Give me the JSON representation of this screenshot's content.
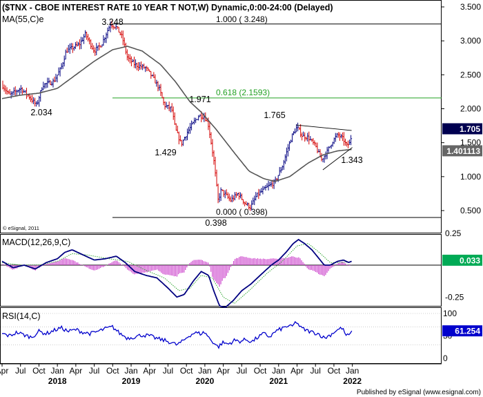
{
  "header": {
    "title": "($TNX - CBOE INTEREST RATE 10 YEAR T NOT,W) Dynamic,0:00-24:00 (Delayed)",
    "ma_label": "MA(55,C)e",
    "copyright": "© eSignal, 2011"
  },
  "footer": "Published by eSignal (www.esignal.com)",
  "colors": {
    "up": "#000080",
    "down": "#d40000",
    "ma": "#555555",
    "fib": "#22a022",
    "macd": "#000080",
    "signal": "#22a022",
    "hist": "#cc44cc",
    "rsi": "#0000cc",
    "badge_dark": "#000050",
    "badge_green": "#00aa55",
    "badge_blue": "#0000cc"
  },
  "chart_data": [
    {
      "type": "candlestick",
      "title": "($TNX - CBOE INTEREST RATE 10 YEAR T NOT,W) Dynamic,0:00-24:00 (Delayed)",
      "ylim": [
        0.2,
        3.5
      ],
      "y_ticks": [
        "3.500",
        "3.000",
        "2.500",
        "2.000",
        "1.500",
        "1.000",
        "0.500"
      ],
      "x_ticks": [
        "Apr",
        "Jul",
        "Oct",
        "Jan",
        "Apr",
        "Jul",
        "Oct",
        "Jan",
        "Apr",
        "Jul",
        "Oct",
        "Jan",
        "Apr",
        "Jul",
        "Oct",
        "Jan",
        "Apr",
        "Jul",
        "Oct",
        "Jan"
      ],
      "year_labels": [
        "2018",
        "2019",
        "2020",
        "2021",
        "2022"
      ],
      "price_badges": [
        {
          "label": "1.705",
          "value": 1.705
        },
        {
          "label": "1.401113",
          "value": 1.401
        }
      ],
      "fib_levels": [
        {
          "label": "1.000 ( 3.248)",
          "value": 3.248
        },
        {
          "label": "0.618 (2.1593)",
          "value": 2.1593
        },
        {
          "label": "0.000 ( 0.398)",
          "value": 0.398
        }
      ],
      "annotations": [
        {
          "label": "3.248",
          "value": 3.248
        },
        {
          "label": "2.034",
          "value": 2.034
        },
        {
          "label": "1.971",
          "value": 1.971
        },
        {
          "label": "1.429",
          "value": 1.429
        },
        {
          "label": "0.398",
          "value": 0.398
        },
        {
          "label": "1.765",
          "value": 1.765
        },
        {
          "label": "1.343",
          "value": 1.343
        }
      ],
      "price_anchors": [
        [
          2017.25,
          2.35
        ],
        [
          2017.35,
          2.2
        ],
        [
          2017.5,
          2.3
        ],
        [
          2017.6,
          2.2
        ],
        [
          2017.72,
          2.05
        ],
        [
          2017.8,
          2.35
        ],
        [
          2017.95,
          2.4
        ],
        [
          2018.05,
          2.6
        ],
        [
          2018.12,
          2.85
        ],
        [
          2018.3,
          2.95
        ],
        [
          2018.38,
          3.1
        ],
        [
          2018.5,
          2.85
        ],
        [
          2018.6,
          2.95
        ],
        [
          2018.72,
          3.25
        ],
        [
          2018.8,
          3.2
        ],
        [
          2018.88,
          3.05
        ],
        [
          2018.95,
          2.75
        ],
        [
          2019.05,
          2.65
        ],
        [
          2019.2,
          2.6
        ],
        [
          2019.3,
          2.45
        ],
        [
          2019.38,
          2.3
        ],
        [
          2019.45,
          2.05
        ],
        [
          2019.55,
          2.0
        ],
        [
          2019.6,
          1.7
        ],
        [
          2019.68,
          1.48
        ],
        [
          2019.76,
          1.65
        ],
        [
          2019.85,
          1.8
        ],
        [
          2019.92,
          1.9
        ],
        [
          2020.0,
          1.88
        ],
        [
          2020.05,
          1.75
        ],
        [
          2020.12,
          1.25
        ],
        [
          2020.18,
          0.65
        ],
        [
          2020.22,
          0.8
        ],
        [
          2020.35,
          0.65
        ],
        [
          2020.45,
          0.75
        ],
        [
          2020.55,
          0.6
        ],
        [
          2020.62,
          0.55
        ],
        [
          2020.7,
          0.72
        ],
        [
          2020.85,
          0.85
        ],
        [
          2020.95,
          0.92
        ],
        [
          2021.05,
          1.15
        ],
        [
          2021.12,
          1.4
        ],
        [
          2021.18,
          1.6
        ],
        [
          2021.25,
          1.73
        ],
        [
          2021.32,
          1.6
        ],
        [
          2021.4,
          1.58
        ],
        [
          2021.5,
          1.45
        ],
        [
          2021.58,
          1.25
        ],
        [
          2021.65,
          1.35
        ],
        [
          2021.72,
          1.5
        ],
        [
          2021.8,
          1.62
        ],
        [
          2021.88,
          1.55
        ],
        [
          2021.92,
          1.45
        ],
        [
          2021.97,
          1.5
        ],
        [
          2022.0,
          1.705
        ]
      ],
      "ma_anchors": [
        [
          2017.25,
          2.15
        ],
        [
          2017.5,
          2.2
        ],
        [
          2017.75,
          2.23
        ],
        [
          2018.0,
          2.3
        ],
        [
          2018.25,
          2.5
        ],
        [
          2018.5,
          2.7
        ],
        [
          2018.75,
          2.87
        ],
        [
          2018.95,
          2.92
        ],
        [
          2019.15,
          2.85
        ],
        [
          2019.4,
          2.65
        ],
        [
          2019.6,
          2.4
        ],
        [
          2019.8,
          2.1
        ],
        [
          2019.95,
          1.95
        ],
        [
          2020.15,
          1.7
        ],
        [
          2020.4,
          1.35
        ],
        [
          2020.6,
          1.08
        ],
        [
          2020.8,
          0.97
        ],
        [
          2020.95,
          0.93
        ],
        [
          2021.15,
          1.0
        ],
        [
          2021.4,
          1.2
        ],
        [
          2021.6,
          1.32
        ],
        [
          2021.8,
          1.38
        ],
        [
          2022.0,
          1.401
        ]
      ]
    },
    {
      "type": "line",
      "title": "MACD(12,26,9,C)",
      "y_ticks": [
        "0.25",
        "-0.25"
      ],
      "ylim": [
        -0.38,
        0.28
      ],
      "badge": {
        "label": "0.033",
        "value": 0.033
      },
      "macd_anchors": [
        [
          2017.25,
          0.03
        ],
        [
          2017.4,
          -0.02
        ],
        [
          2017.55,
          0.0
        ],
        [
          2017.7,
          -0.03
        ],
        [
          2017.85,
          0.02
        ],
        [
          2018.0,
          0.05
        ],
        [
          2018.1,
          0.1
        ],
        [
          2018.2,
          0.12
        ],
        [
          2018.35,
          0.08
        ],
        [
          2018.5,
          0.04
        ],
        [
          2018.65,
          0.05
        ],
        [
          2018.8,
          0.07
        ],
        [
          2018.92,
          0.02
        ],
        [
          2019.05,
          -0.05
        ],
        [
          2019.2,
          -0.08
        ],
        [
          2019.35,
          -0.1
        ],
        [
          2019.5,
          -0.18
        ],
        [
          2019.62,
          -0.25
        ],
        [
          2019.72,
          -0.23
        ],
        [
          2019.85,
          -0.12
        ],
        [
          2019.95,
          -0.05
        ],
        [
          2020.05,
          -0.08
        ],
        [
          2020.12,
          -0.2
        ],
        [
          2020.2,
          -0.32
        ],
        [
          2020.28,
          -0.33
        ],
        [
          2020.38,
          -0.28
        ],
        [
          2020.5,
          -0.2
        ],
        [
          2020.62,
          -0.15
        ],
        [
          2020.75,
          -0.08
        ],
        [
          2020.9,
          0.0
        ],
        [
          2021.0,
          0.04
        ],
        [
          2021.1,
          0.1
        ],
        [
          2021.2,
          0.17
        ],
        [
          2021.27,
          0.2
        ],
        [
          2021.35,
          0.17
        ],
        [
          2021.45,
          0.12
        ],
        [
          2021.55,
          0.05
        ],
        [
          2021.62,
          0.0
        ],
        [
          2021.7,
          0.0
        ],
        [
          2021.8,
          0.03
        ],
        [
          2021.88,
          0.04
        ],
        [
          2021.95,
          0.02
        ],
        [
          2022.0,
          0.033
        ]
      ],
      "signal_anchors": [
        [
          2017.25,
          0.02
        ],
        [
          2017.5,
          0.0
        ],
        [
          2017.75,
          0.0
        ],
        [
          2018.0,
          0.03
        ],
        [
          2018.2,
          0.09
        ],
        [
          2018.4,
          0.08
        ],
        [
          2018.7,
          0.05
        ],
        [
          2018.95,
          0.03
        ],
        [
          2019.2,
          -0.04
        ],
        [
          2019.45,
          -0.1
        ],
        [
          2019.65,
          -0.2
        ],
        [
          2019.8,
          -0.18
        ],
        [
          2019.95,
          -0.08
        ],
        [
          2020.1,
          -0.1
        ],
        [
          2020.25,
          -0.25
        ],
        [
          2020.4,
          -0.3
        ],
        [
          2020.6,
          -0.2
        ],
        [
          2020.85,
          -0.06
        ],
        [
          2021.05,
          0.03
        ],
        [
          2021.25,
          0.15
        ],
        [
          2021.4,
          0.17
        ],
        [
          2021.55,
          0.1
        ],
        [
          2021.7,
          0.02
        ],
        [
          2021.85,
          0.02
        ],
        [
          2022.0,
          0.03
        ]
      ]
    },
    {
      "type": "line",
      "title": "RSI(14,C)",
      "y_ticks": [
        "100",
        "50",
        "0"
      ],
      "ylim": [
        0,
        100
      ],
      "badge": {
        "label": "61.254",
        "value": 61.254
      },
      "rsi_anchors": [
        [
          2017.25,
          55
        ],
        [
          2017.35,
          50
        ],
        [
          2017.45,
          58
        ],
        [
          2017.55,
          52
        ],
        [
          2017.65,
          47
        ],
        [
          2017.75,
          60
        ],
        [
          2017.85,
          55
        ],
        [
          2017.95,
          62
        ],
        [
          2018.05,
          68
        ],
        [
          2018.15,
          60
        ],
        [
          2018.25,
          64
        ],
        [
          2018.35,
          58
        ],
        [
          2018.45,
          55
        ],
        [
          2018.55,
          60
        ],
        [
          2018.65,
          66
        ],
        [
          2018.75,
          70
        ],
        [
          2018.85,
          55
        ],
        [
          2018.95,
          45
        ],
        [
          2019.05,
          48
        ],
        [
          2019.15,
          52
        ],
        [
          2019.25,
          50
        ],
        [
          2019.35,
          44
        ],
        [
          2019.45,
          40
        ],
        [
          2019.55,
          35
        ],
        [
          2019.62,
          30
        ],
        [
          2019.7,
          38
        ],
        [
          2019.78,
          50
        ],
        [
          2019.86,
          57
        ],
        [
          2019.94,
          55
        ],
        [
          2020.0,
          58
        ],
        [
          2020.06,
          45
        ],
        [
          2020.12,
          35
        ],
        [
          2020.18,
          25
        ],
        [
          2020.24,
          35
        ],
        [
          2020.32,
          32
        ],
        [
          2020.4,
          40
        ],
        [
          2020.48,
          38
        ],
        [
          2020.56,
          42
        ],
        [
          2020.64,
          37
        ],
        [
          2020.72,
          47
        ],
        [
          2020.8,
          55
        ],
        [
          2020.88,
          48
        ],
        [
          2020.96,
          60
        ],
        [
          2021.04,
          66
        ],
        [
          2021.12,
          72
        ],
        [
          2021.18,
          70
        ],
        [
          2021.24,
          82
        ],
        [
          2021.3,
          68
        ],
        [
          2021.38,
          62
        ],
        [
          2021.46,
          58
        ],
        [
          2021.54,
          55
        ],
        [
          2021.62,
          45
        ],
        [
          2021.7,
          52
        ],
        [
          2021.78,
          62
        ],
        [
          2021.86,
          68
        ],
        [
          2021.92,
          50
        ],
        [
          2021.97,
          52
        ],
        [
          2022.0,
          61.254
        ]
      ]
    }
  ]
}
